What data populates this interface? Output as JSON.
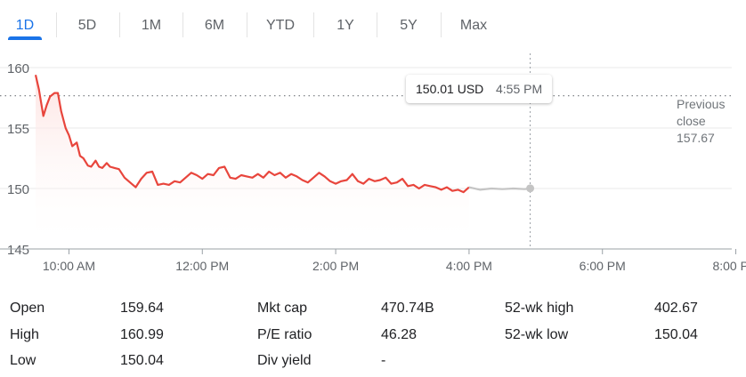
{
  "tabs": [
    {
      "label": "1D",
      "active": true
    },
    {
      "label": "5D",
      "active": false
    },
    {
      "label": "1M",
      "active": false
    },
    {
      "label": "6M",
      "active": false
    },
    {
      "label": "YTD",
      "active": false
    },
    {
      "label": "1Y",
      "active": false
    },
    {
      "label": "5Y",
      "active": false
    },
    {
      "label": "Max",
      "active": false
    }
  ],
  "tooltip": {
    "price": "150.01 USD",
    "time": "4:55 PM"
  },
  "previous_close": {
    "label_line1": "Previous",
    "label_line2": "close",
    "value": "157.67"
  },
  "colors": {
    "accent": "#1a73e8",
    "line": "#e8453c",
    "after_hours": "#c4c4c4",
    "fill": "#fde4e2",
    "grid": "#e8e8e8"
  },
  "chart_data": {
    "type": "line",
    "ylim": [
      145,
      160
    ],
    "y_ticks": [
      160,
      155,
      150,
      145
    ],
    "x_ticks": [
      "10:00 AM",
      "12:00 PM",
      "2:00 PM",
      "4:00 PM",
      "6:00 PM",
      "8:00 PM"
    ],
    "x_tick_minutes": [
      600,
      720,
      840,
      960,
      1080,
      1200
    ],
    "x_range_minutes": [
      570,
      1230
    ],
    "reference_line": 157.67,
    "crosshair_minute": 1015,
    "series": [
      {
        "segment": "regular",
        "x_minutes": [
          570,
          573,
          577,
          580,
          583,
          587,
          590,
          593,
          597,
          600,
          603,
          607,
          610,
          613,
          617,
          620,
          624,
          627,
          630,
          634,
          637,
          641,
          645,
          650,
          655,
          660,
          665,
          670,
          675,
          680,
          685,
          690,
          695,
          700,
          705,
          710,
          715,
          720,
          725,
          730,
          735,
          740,
          745,
          750,
          755,
          760,
          765,
          770,
          775,
          780,
          785,
          790,
          795,
          800,
          805,
          810,
          815,
          820,
          825,
          830,
          835,
          840,
          845,
          850,
          855,
          860,
          865,
          870,
          875,
          880,
          885,
          890,
          895,
          900,
          905,
          910,
          915,
          920,
          925,
          930,
          935,
          940,
          945,
          950,
          955,
          960
        ],
        "y": [
          159.4,
          158.2,
          156.0,
          156.9,
          157.6,
          157.9,
          157.9,
          156.4,
          155.0,
          154.4,
          153.5,
          153.8,
          152.7,
          152.5,
          151.9,
          151.8,
          152.3,
          151.8,
          151.7,
          152.1,
          151.8,
          151.7,
          151.6,
          150.9,
          150.5,
          150.1,
          150.8,
          151.3,
          151.4,
          150.3,
          150.4,
          150.3,
          150.6,
          150.5,
          150.9,
          151.3,
          151.1,
          150.8,
          151.2,
          151.1,
          151.7,
          151.8,
          150.9,
          150.8,
          151.1,
          151.0,
          150.9,
          151.2,
          150.9,
          151.4,
          151.1,
          151.3,
          150.9,
          151.2,
          151.0,
          150.7,
          150.5,
          150.9,
          151.3,
          151.0,
          150.6,
          150.4,
          150.6,
          150.7,
          151.2,
          150.6,
          150.4,
          150.8,
          150.6,
          150.7,
          150.9,
          150.4,
          150.5,
          150.8,
          150.2,
          150.3,
          150.0,
          150.3,
          150.2,
          150.1,
          149.9,
          150.1,
          149.8,
          149.9,
          149.7,
          150.1
        ]
      },
      {
        "segment": "after-hours",
        "x_minutes": [
          960,
          970,
          980,
          990,
          1000,
          1010,
          1015
        ],
        "y": [
          150.1,
          149.9,
          150.0,
          149.95,
          150.0,
          149.95,
          150.01
        ]
      }
    ],
    "title": "",
    "xlabel": "",
    "ylabel": "",
    "grid": true,
    "legend": "none"
  },
  "stats": {
    "col1": [
      {
        "label": "Open",
        "value": "159.64"
      },
      {
        "label": "High",
        "value": "160.99"
      },
      {
        "label": "Low",
        "value": "150.04"
      }
    ],
    "col2": [
      {
        "label": "Mkt cap",
        "value": "470.74B"
      },
      {
        "label": "P/E ratio",
        "value": "46.28"
      },
      {
        "label": "Div yield",
        "value": "-"
      }
    ],
    "col3": [
      {
        "label": "52-wk high",
        "value": "402.67"
      },
      {
        "label": "52-wk low",
        "value": "150.04"
      }
    ]
  }
}
